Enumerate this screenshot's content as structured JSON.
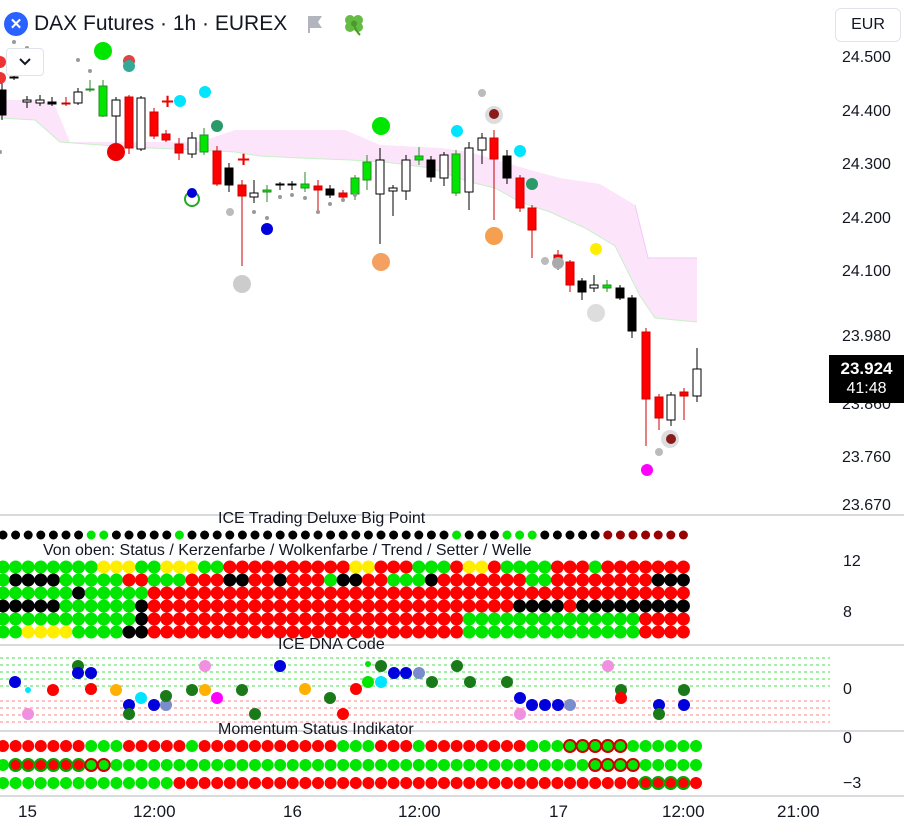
{
  "header": {
    "symbol_title": "DAX Futures · 1h · EUREX",
    "exchange_icon": "x-circle-icon",
    "flag_icon": "flag-icon",
    "clover_icon": "clover-icon",
    "currency": "EUR"
  },
  "price_axis": {
    "ticks": [
      "24.500",
      "24.400",
      "24.300",
      "24.200",
      "24.100",
      "23.980",
      "23.860",
      "23.760",
      "23.670"
    ]
  },
  "last_price": {
    "price": "23.924",
    "countdown": "41:48"
  },
  "pane1": {
    "title": "ICE Trading Deluxe Big Point",
    "subtitle": "Von oben: Status / Kerzenfarbe / Wolkenfarbe / Trend / Setter / Welle",
    "axis": [
      "12",
      "8"
    ]
  },
  "pane2": {
    "title": "ICE DNA Code",
    "axis": [
      "0"
    ]
  },
  "pane3": {
    "title": "Momentum Status Indikator",
    "axis": [
      "0",
      "−3"
    ]
  },
  "time_axis": [
    "15",
    "12:00",
    "16",
    "12:00",
    "17",
    "12:00",
    "21:00"
  ],
  "colors": {
    "up_candle": "#00e600",
    "down_candle": "#ff0000",
    "doji": "#000000",
    "cloud": "#fce4fb",
    "accent": "#2962ff"
  }
}
